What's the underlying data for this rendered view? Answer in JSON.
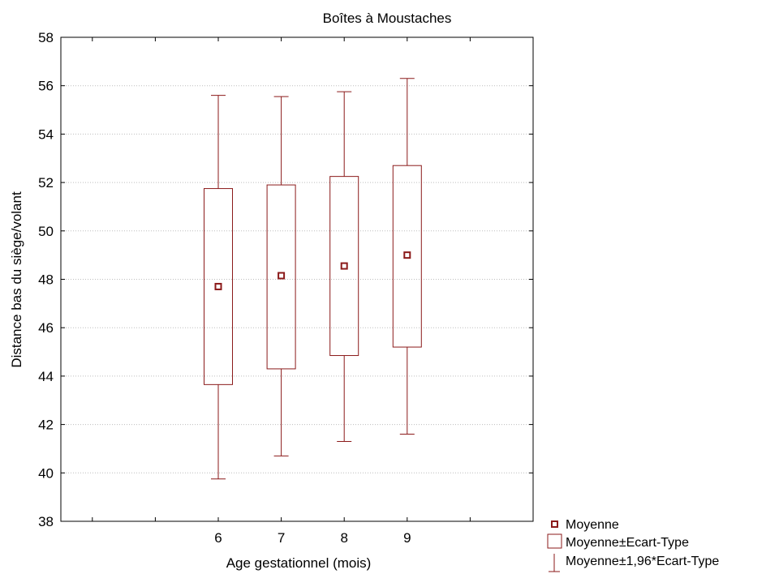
{
  "chart_data": {
    "type": "box",
    "title": "Boîtes à Moustaches",
    "xlabel": "Age gestationnel (mois)",
    "ylabel": "Distance bas du siège/volant",
    "ylim": [
      38,
      58
    ],
    "yticks": [
      38,
      40,
      42,
      44,
      46,
      48,
      50,
      52,
      54,
      56,
      58
    ],
    "categories": [
      "6",
      "7",
      "8",
      "9"
    ],
    "xrange": [
      3.5,
      11
    ],
    "grid": true,
    "legend_position": "bottom-right",
    "series": [
      {
        "name": "Moyenne",
        "values": [
          47.7,
          48.15,
          48.55,
          49.0
        ]
      },
      {
        "name": "Moyenne±Ecart-Type",
        "low": [
          43.65,
          44.3,
          44.85,
          45.2
        ],
        "high": [
          51.75,
          51.9,
          52.25,
          52.7
        ]
      },
      {
        "name": "Moyenne±1,96*Ecart-Type",
        "low": [
          39.75,
          40.7,
          41.3,
          41.6
        ],
        "high": [
          55.6,
          55.55,
          55.75,
          56.3
        ]
      }
    ],
    "colors": {
      "marks": "#8b1a1a",
      "grid": "#bdbdbd",
      "axis": "#000000"
    }
  }
}
